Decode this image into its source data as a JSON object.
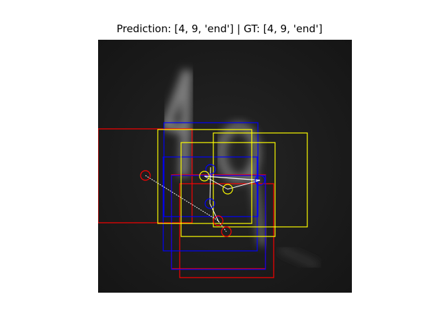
{
  "title": "Prediction: [4, 9, 'end'] | GT: [4, 9, 'end']",
  "image": {
    "content": "handwritten digits 4 and 9 on dark background"
  },
  "colors": {
    "background": "#000000",
    "glimpse_red": "#ff0000",
    "glimpse_blue": "#0000ff",
    "glimpse_yellow": "#ffff00",
    "trajectory": "#ffffff"
  }
}
